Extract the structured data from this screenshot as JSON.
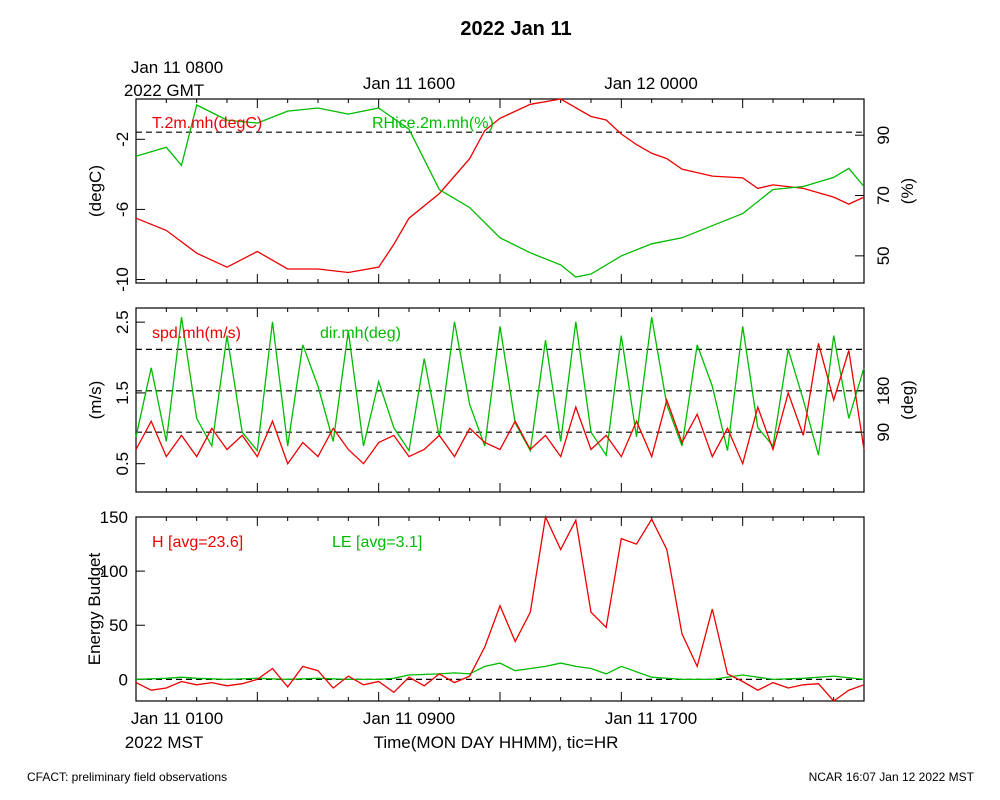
{
  "title": "2022 Jan 11",
  "top_axis": {
    "first_label_line1": "Jan 11 0800",
    "first_label_line2": "2022 GMT",
    "labels": [
      "Jan 11 1600",
      "Jan 12 0000"
    ]
  },
  "bottom_axis": {
    "first_label_line1": "Jan 11 0100",
    "first_label_line2": "2022 MST",
    "labels": [
      "Jan 11 0900",
      "Jan 11 1700"
    ],
    "xlabel": "Time(MON DAY HHMM), tic=HR"
  },
  "footer": {
    "left": "CFACT: preliminary field observations",
    "right": "NCAR 16:07 Jan 12 2022 MST"
  },
  "colors": {
    "red": "#ee0000",
    "green": "#00bb00"
  },
  "chart_data": [
    {
      "type": "line",
      "panel": "temperature-humidity",
      "x_unit": "hours since Jan 11 0100 MST",
      "xlim": [
        0,
        24
      ],
      "left_axis": {
        "label": "(degC)",
        "ticks": [
          "-2",
          "-6",
          "-10"
        ],
        "tick_values": [
          -2,
          -6,
          -10
        ],
        "ylim": [
          -10.2,
          0.3
        ]
      },
      "right_axis": {
        "label": "(%)",
        "ticks": [
          "90",
          "70",
          "50"
        ],
        "tick_values": [
          90,
          70,
          50
        ],
        "ylim": [
          41,
          102
        ]
      },
      "reference_lines_right": [
        91
      ],
      "series": [
        {
          "name": "T.2m.mh(degC)",
          "color": "red",
          "axis": "left",
          "x": [
            0,
            1,
            2,
            3,
            4,
            5,
            6,
            7,
            8,
            8.5,
            9,
            10,
            11,
            11.5,
            12,
            13,
            14,
            15,
            15.5,
            16,
            16.5,
            17,
            17.5,
            18,
            19,
            20,
            20.5,
            21,
            22,
            23,
            23.5,
            24
          ],
          "y": [
            -6.5,
            -7.2,
            -8.5,
            -9.3,
            -8.4,
            -9.4,
            -9.4,
            -9.6,
            -9.3,
            -8,
            -6.5,
            -5.1,
            -3.1,
            -1.5,
            -0.8,
            0,
            0.3,
            -0.7,
            -0.9,
            -1.7,
            -2.3,
            -2.8,
            -3.1,
            -3.7,
            -4.1,
            -4.2,
            -4.8,
            -4.6,
            -4.8,
            -5.3,
            -5.7,
            -5.3
          ]
        },
        {
          "name": "RHice.2m.mh(%)",
          "color": "green",
          "axis": "right",
          "x": [
            0,
            1,
            1.5,
            2,
            3,
            4,
            5,
            6,
            7,
            8,
            9,
            10,
            11,
            12,
            13,
            14,
            14.5,
            15,
            16,
            17,
            18,
            19,
            20,
            21,
            22,
            23,
            23.5,
            24
          ],
          "y": [
            83,
            86,
            80,
            100,
            95,
            94,
            98,
            99,
            97,
            99,
            92,
            72,
            66,
            56,
            51,
            47,
            43,
            44,
            50,
            54,
            56,
            60,
            64,
            72,
            73,
            76,
            79,
            73
          ]
        }
      ]
    },
    {
      "type": "line",
      "panel": "wind",
      "x_unit": "hours since Jan 11 0100 MST",
      "xlim": [
        0,
        24
      ],
      "left_axis": {
        "label": "(m/s)",
        "ticks": [
          "2.5",
          "1.5",
          "0.5"
        ],
        "tick_values": [
          2.5,
          1.5,
          0.5
        ],
        "ylim": [
          0.1,
          2.7
        ]
      },
      "right_axis": {
        "label": "(deg)",
        "ticks": [
          "180",
          "90"
        ],
        "tick_values": [
          180,
          90
        ],
        "ylim": [
          -40,
          360
        ]
      },
      "reference_lines_right": [
        90,
        180,
        270
      ],
      "series": [
        {
          "name": "spd.mh(m/s)",
          "color": "red",
          "axis": "left",
          "x": [
            0,
            0.5,
            1,
            1.5,
            2,
            2.5,
            3,
            3.5,
            4,
            4.5,
            5,
            5.5,
            6,
            6.5,
            7,
            7.5,
            8,
            8.5,
            9,
            9.5,
            10,
            10.5,
            11,
            11.5,
            12,
            12.5,
            13,
            13.5,
            14,
            14.5,
            15,
            15.5,
            16,
            16.5,
            17,
            17.5,
            18,
            18.5,
            19,
            19.5,
            20,
            20.5,
            21,
            21.5,
            22,
            22.5,
            23,
            23.5,
            24
          ],
          "y": [
            0.7,
            1.1,
            0.6,
            0.9,
            0.6,
            1.0,
            0.7,
            0.9,
            0.6,
            1.1,
            0.5,
            0.8,
            0.6,
            1.0,
            0.7,
            0.5,
            0.8,
            0.9,
            0.6,
            0.7,
            0.9,
            0.6,
            1.0,
            0.8,
            0.7,
            1.1,
            0.7,
            0.9,
            0.6,
            1.3,
            0.7,
            0.9,
            0.6,
            1.1,
            0.6,
            1.4,
            0.8,
            1.2,
            0.6,
            1.0,
            0.5,
            1.3,
            0.7,
            1.5,
            0.9,
            2.2,
            1.4,
            2.1,
            0.7
          ]
        },
        {
          "name": "dir.mh(deg)",
          "color": "green",
          "axis": "right",
          "x": [
            0,
            0.5,
            1,
            1.5,
            2,
            2.5,
            3,
            3.5,
            4,
            4.5,
            5,
            5.5,
            6,
            6.5,
            7,
            7.5,
            8,
            8.5,
            9,
            9.5,
            10,
            10.5,
            11,
            11.5,
            12,
            12.5,
            13,
            13.5,
            14,
            14.5,
            15,
            15.5,
            16,
            16.5,
            17,
            17.5,
            18,
            18.5,
            19,
            19.5,
            20,
            20.5,
            21,
            21.5,
            22,
            22.5,
            23,
            23.5,
            24
          ],
          "y": [
            80,
            230,
            70,
            340,
            120,
            60,
            300,
            90,
            50,
            330,
            60,
            280,
            190,
            70,
            310,
            60,
            200,
            100,
            50,
            250,
            80,
            330,
            150,
            60,
            320,
            110,
            50,
            290,
            70,
            330,
            90,
            40,
            300,
            80,
            340,
            150,
            60,
            280,
            190,
            50,
            320,
            100,
            60,
            270,
            160,
            40,
            300,
            120,
            230
          ]
        }
      ]
    },
    {
      "type": "line",
      "panel": "energy-budget",
      "x_unit": "hours since Jan 11 0100 MST",
      "xlim": [
        0,
        24
      ],
      "left_axis": {
        "label": "Energy Budget",
        "ticks": [
          "150",
          "100",
          "50",
          "0"
        ],
        "tick_values": [
          150,
          100,
          50,
          0
        ],
        "ylim": [
          -20,
          150
        ]
      },
      "reference_lines_left": [
        0
      ],
      "series": [
        {
          "name": "H [avg=23.6]",
          "color": "red",
          "axis": "left",
          "x": [
            0,
            0.5,
            1,
            1.5,
            2,
            2.5,
            3,
            3.5,
            4,
            4.5,
            5,
            5.5,
            6,
            6.5,
            7,
            7.5,
            8,
            8.5,
            9,
            9.5,
            10,
            10.5,
            11,
            11.5,
            12,
            12.5,
            13,
            13.5,
            14,
            14.5,
            15,
            15.5,
            16,
            16.5,
            17,
            17.5,
            18,
            18.5,
            19,
            19.5,
            20,
            20.5,
            21,
            21.5,
            22,
            22.5,
            23,
            23.5,
            24
          ],
          "y": [
            -3,
            -10,
            -8,
            -2,
            -5,
            -3,
            -6,
            -4,
            0,
            10,
            -7,
            12,
            8,
            -8,
            3,
            -5,
            -2,
            -12,
            2,
            -6,
            5,
            -3,
            3,
            30,
            68,
            35,
            62,
            150,
            120,
            147,
            62,
            48,
            130,
            125,
            148,
            120,
            42,
            12,
            65,
            5,
            -2,
            -10,
            -3,
            -8,
            -5,
            -4,
            -20,
            -10,
            -5
          ]
        },
        {
          "name": "LE [avg=3.1]",
          "color": "green",
          "axis": "left",
          "x": [
            0,
            1,
            1.5,
            2,
            3,
            4,
            5,
            6,
            7,
            8,
            8.5,
            9,
            10,
            10.5,
            11,
            11.5,
            12,
            12.5,
            13,
            13.5,
            14,
            14.5,
            15,
            15.5,
            16,
            17,
            18,
            19,
            20,
            21,
            22,
            23,
            24
          ],
          "y": [
            0,
            1,
            2,
            1,
            0,
            1,
            0,
            1,
            0,
            0,
            1,
            4,
            5,
            6,
            5,
            12,
            15,
            8,
            10,
            12,
            15,
            12,
            10,
            5,
            12,
            2,
            0,
            0,
            4,
            0,
            1,
            3,
            0
          ]
        }
      ]
    }
  ]
}
